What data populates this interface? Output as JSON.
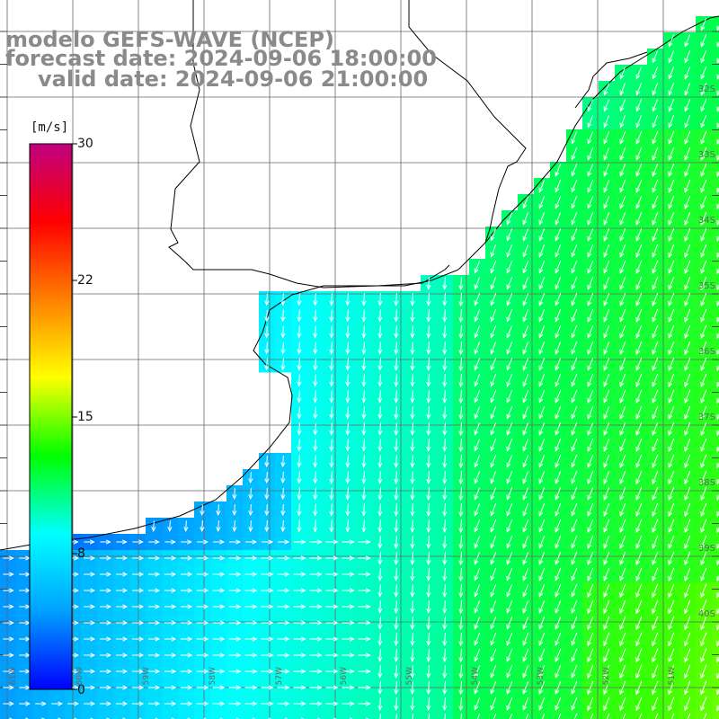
{
  "title": {
    "model": "modelo GEFS-WAVE (NCEP)",
    "forecast": "forecast date: 2024-09-06 18:00:00",
    "valid": "valid date: 2024-09-06 21:00:00"
  },
  "colorbar": {
    "unit": "[m/s]",
    "ticks": [
      "30",
      "22",
      "15",
      "8",
      "0"
    ],
    "min": 0,
    "max": 30,
    "colors": [
      "#0000ff",
      "#00a0ff",
      "#00ffff",
      "#00ff00",
      "#ffff00",
      "#ff8000",
      "#ff0000",
      "#c00080"
    ]
  },
  "lat_labels": [
    "32S",
    "33S",
    "34S",
    "35S",
    "36S",
    "37S",
    "38S",
    "39S",
    "40S"
  ],
  "lon_labels": [
    "61W",
    "60W",
    "59W",
    "58W",
    "57W",
    "56W",
    "55W",
    "54W",
    "53W",
    "52W",
    "51W"
  ],
  "colors": {
    "land": "#ffffff",
    "grid": "#555555",
    "coast": "#000000",
    "arrow": "#ffffff",
    "title": "#8a8a8a"
  }
}
